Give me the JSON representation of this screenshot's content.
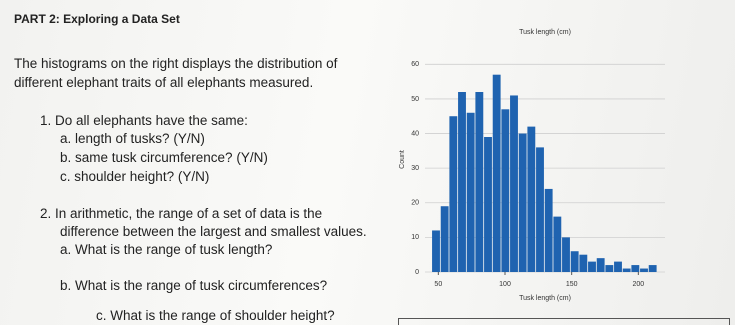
{
  "document": {
    "title": "PART 2: Exploring a Data Set",
    "intro": [
      "The histograms on the right displays the distribution of",
      "different elephant traits of all elephants measured."
    ],
    "q1": {
      "text": "1.  Do all elephants have the same:",
      "items": [
        "a.  length of tusks? (Y/N)",
        "b.  same tusk circumference? (Y/N)",
        "c.  shoulder height?  (Y/N)"
      ]
    },
    "q2": {
      "text": [
        "2.  In arithmetic, the range of a set of data is the",
        "difference between the largest and smallest values."
      ],
      "items": [
        "a.  What is the range of tusk length?",
        "b.  What is the range of tusk circumferences?",
        "c.  What is the range of shoulder height?"
      ]
    }
  },
  "chart_data": {
    "type": "histogram",
    "title": "Tusk length (cm)",
    "x_label": "Tusk length (cm)",
    "y_label": "Count",
    "bins": [
      45,
      51.5,
      58,
      64.5,
      71,
      77.5,
      84,
      90.5,
      97,
      103.5,
      110,
      116.5,
      123,
      129.5,
      136,
      142.5,
      149,
      155.5,
      162,
      168.5,
      175,
      181.5,
      188,
      194.5,
      201,
      207.5,
      214
    ],
    "values": [
      12,
      19,
      45,
      52,
      46,
      52,
      39,
      57,
      47,
      51,
      40,
      42,
      36,
      24,
      16,
      10,
      6,
      5,
      3,
      4,
      2,
      3,
      1,
      2,
      1,
      2
    ],
    "color": "#1f63b0",
    "xlim": [
      40,
      220
    ],
    "xticks": [
      50,
      100,
      150,
      200
    ],
    "ylim": [
      0,
      65
    ],
    "yticks": [
      0,
      10,
      20,
      30,
      40,
      50,
      60
    ],
    "grid": true
  }
}
